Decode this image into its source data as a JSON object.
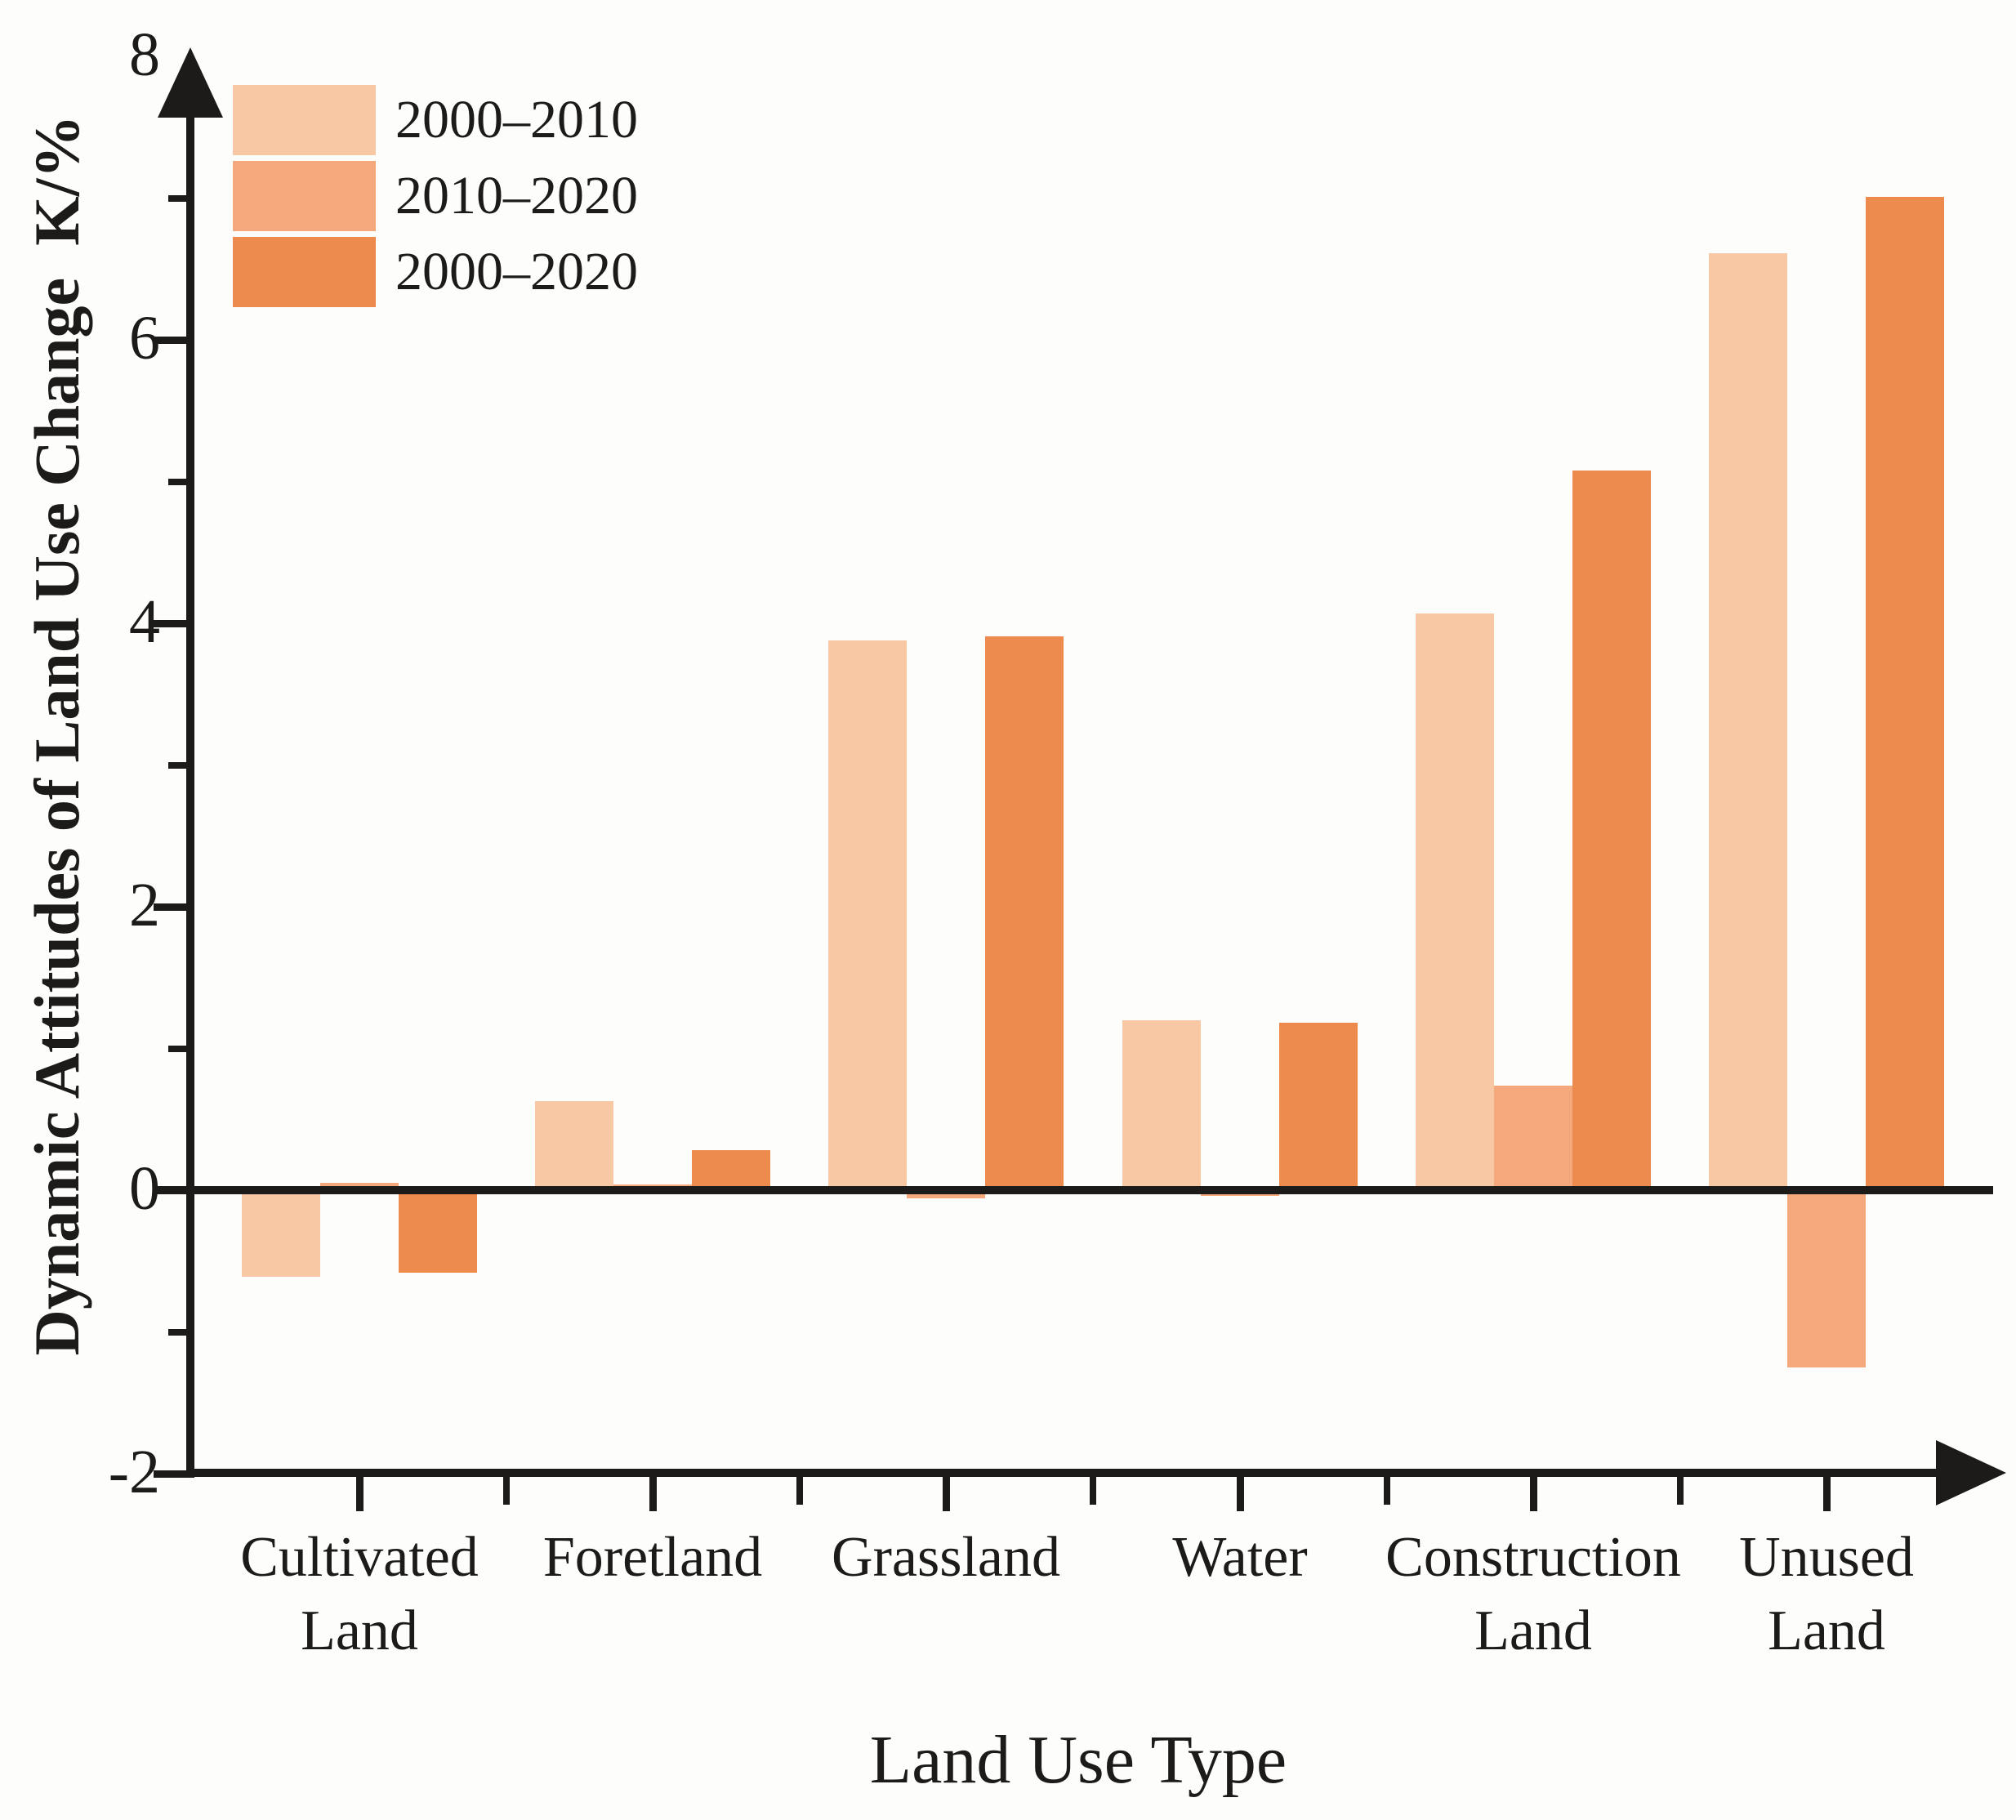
{
  "chart_data": {
    "type": "bar",
    "title": "",
    "categories": [
      "Cultivated Land",
      "Foretland",
      "Grassland",
      "Water",
      "Construction Land",
      "Unused Land"
    ],
    "category_labels": [
      [
        "Cultivated",
        "Land"
      ],
      [
        "Foretland"
      ],
      [
        "Grassland"
      ],
      [
        "Water"
      ],
      [
        "Construction",
        "Land"
      ],
      [
        "Unused",
        "Land"
      ]
    ],
    "series": [
      {
        "name": "2000–2010",
        "color": "#F8C7A3",
        "values": [
          -0.61,
          0.63,
          3.88,
          1.2,
          4.07,
          6.61
        ]
      },
      {
        "name": "2010–2020",
        "color": "#F4A87B",
        "values": [
          0.05,
          0.04,
          -0.06,
          -0.04,
          0.74,
          -1.25
        ]
      },
      {
        "name": "2000–2020",
        "color": "#ED8B4F",
        "values": [
          -0.58,
          0.28,
          3.91,
          1.18,
          5.08,
          7.01
        ]
      }
    ],
    "xlabel": "Land Use Type",
    "ylabel": "Dynamic Attitudes of Land Use Change  K/%",
    "ylim": [
      -2,
      8
    ],
    "y_major_ticks": [
      8,
      6,
      4,
      2,
      0,
      -2
    ],
    "y_minor_ticks": [
      7,
      5,
      3,
      1,
      -1
    ],
    "legend_position": "top-left",
    "grid": false,
    "axis_color": "#1c1b1a",
    "background": "#fdfdfc"
  }
}
